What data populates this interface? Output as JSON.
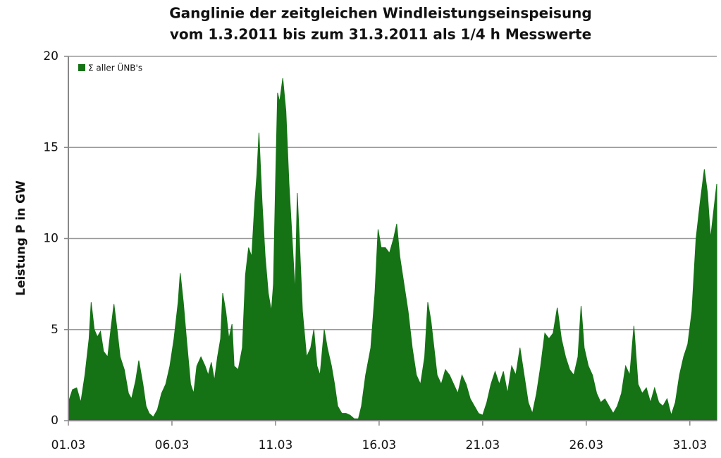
{
  "chart_data": {
    "type": "area",
    "title": "Ganglinie der zeitgleichen Windleistungseinspeisung",
    "subtitle": "vom 1.3.2011 bis zum 31.3.2011 als 1/4 h Messwerte",
    "y_label": "Leistung P in GW",
    "legend": "top-left",
    "grid": true,
    "xlim": [
      1,
      32.3
    ],
    "ylim": [
      0,
      20
    ],
    "yticks": [
      0,
      5,
      10,
      15,
      20
    ],
    "xticks": [
      {
        "value": 1,
        "label": "01.03"
      },
      {
        "value": 6,
        "label": "06.03"
      },
      {
        "value": 11,
        "label": "11.03"
      },
      {
        "value": 16,
        "label": "16.03"
      },
      {
        "value": 21,
        "label": "21.03"
      },
      {
        "value": 26,
        "label": "26.03"
      },
      {
        "value": 31,
        "label": "31.03"
      }
    ],
    "x": [
      1.0,
      1.2,
      1.4,
      1.6,
      1.8,
      2.0,
      2.1,
      2.25,
      2.4,
      2.55,
      2.7,
      2.9,
      3.05,
      3.2,
      3.35,
      3.5,
      3.7,
      3.9,
      4.05,
      4.25,
      4.4,
      4.6,
      4.75,
      4.9,
      5.1,
      5.3,
      5.5,
      5.7,
      5.9,
      6.1,
      6.3,
      6.4,
      6.55,
      6.7,
      6.9,
      7.05,
      7.2,
      7.4,
      7.6,
      7.75,
      7.9,
      8.05,
      8.2,
      8.35,
      8.45,
      8.6,
      8.75,
      8.9,
      9.0,
      9.2,
      9.4,
      9.55,
      9.7,
      9.85,
      10.0,
      10.1,
      10.2,
      10.35,
      10.5,
      10.65,
      10.8,
      10.9,
      11.0,
      11.1,
      11.2,
      11.35,
      11.5,
      11.65,
      11.8,
      11.95,
      12.05,
      12.15,
      12.3,
      12.5,
      12.7,
      12.85,
      13.0,
      13.15,
      13.35,
      13.5,
      13.7,
      13.85,
      14.0,
      14.2,
      14.4,
      14.6,
      14.8,
      15.0,
      15.15,
      15.35,
      15.6,
      15.8,
      15.95,
      16.1,
      16.3,
      16.5,
      16.7,
      16.85,
      17.0,
      17.2,
      17.4,
      17.6,
      17.8,
      18.0,
      18.2,
      18.35,
      18.5,
      18.65,
      18.8,
      19.0,
      19.2,
      19.4,
      19.6,
      19.8,
      20.0,
      20.2,
      20.4,
      20.6,
      20.8,
      21.0,
      21.2,
      21.4,
      21.6,
      21.8,
      22.0,
      22.2,
      22.4,
      22.6,
      22.8,
      23.0,
      23.2,
      23.4,
      23.6,
      23.8,
      24.0,
      24.2,
      24.4,
      24.6,
      24.8,
      25.0,
      25.2,
      25.4,
      25.6,
      25.75,
      25.9,
      26.1,
      26.3,
      26.5,
      26.7,
      26.9,
      27.1,
      27.3,
      27.5,
      27.7,
      27.9,
      28.1,
      28.3,
      28.5,
      28.7,
      28.9,
      29.1,
      29.3,
      29.5,
      29.7,
      29.9,
      30.1,
      30.3,
      30.5,
      30.7,
      30.9,
      31.1,
      31.3,
      31.5,
      31.7,
      31.85,
      32.0,
      32.3
    ],
    "series": [
      {
        "name": "Σ aller ÜNB's",
        "color": "#157315",
        "values": [
          1.0,
          1.7,
          1.8,
          1.0,
          2.5,
          4.5,
          6.5,
          5.0,
          4.6,
          4.9,
          3.8,
          3.5,
          5.0,
          6.4,
          5.0,
          3.5,
          2.8,
          1.5,
          1.2,
          2.2,
          3.3,
          2.0,
          0.8,
          0.4,
          0.2,
          0.6,
          1.5,
          2.0,
          3.0,
          4.5,
          6.5,
          8.1,
          6.5,
          4.5,
          2.0,
          1.5,
          3.0,
          3.5,
          3.0,
          2.5,
          3.2,
          2.2,
          3.5,
          4.5,
          7.0,
          6.0,
          4.5,
          5.3,
          3.0,
          2.8,
          4.0,
          8.0,
          9.5,
          9.0,
          12.0,
          13.5,
          15.8,
          12.0,
          9.0,
          7.0,
          6.0,
          7.5,
          13.0,
          18.0,
          17.5,
          18.8,
          17.0,
          13.0,
          10.0,
          7.0,
          12.5,
          10.0,
          6.0,
          3.5,
          4.0,
          5.0,
          3.0,
          2.5,
          5.0,
          4.0,
          3.0,
          2.0,
          0.8,
          0.4,
          0.4,
          0.3,
          0.1,
          0.1,
          0.8,
          2.5,
          4.0,
          7.0,
          10.5,
          9.5,
          9.5,
          9.2,
          10.0,
          10.8,
          9.0,
          7.5,
          6.0,
          4.0,
          2.5,
          2.0,
          3.5,
          6.5,
          5.5,
          4.0,
          2.5,
          2.0,
          2.8,
          2.5,
          2.0,
          1.5,
          2.5,
          2.0,
          1.2,
          0.8,
          0.4,
          0.3,
          1.0,
          2.0,
          2.7,
          2.0,
          2.7,
          1.5,
          3.0,
          2.5,
          4.0,
          2.5,
          1.0,
          0.4,
          1.5,
          3.0,
          4.8,
          4.5,
          4.8,
          6.2,
          4.5,
          3.5,
          2.8,
          2.5,
          3.5,
          6.3,
          4.0,
          3.0,
          2.5,
          1.5,
          1.0,
          1.2,
          0.8,
          0.4,
          0.8,
          1.5,
          3.0,
          2.5,
          5.2,
          2.0,
          1.5,
          1.8,
          1.0,
          1.8,
          1.0,
          0.8,
          1.2,
          0.3,
          1.0,
          2.5,
          3.5,
          4.2,
          6.0,
          10.0,
          12.0,
          13.8,
          12.5,
          10.0,
          13.0
        ]
      }
    ]
  }
}
